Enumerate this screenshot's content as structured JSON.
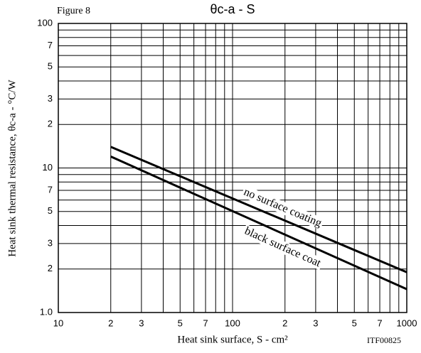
{
  "chart_data": {
    "type": "line",
    "figure_label": "Figure 8",
    "title": "θc-a - S",
    "xlabel": "Heat sink surface, S - cm²",
    "ylabel": "Heat sink thermal resistance, θc-a - °C/W",
    "code": "ITF00825",
    "xscale": "log",
    "yscale": "log",
    "grid": true,
    "xlim": [
      10,
      1000
    ],
    "ylim": [
      1,
      100
    ],
    "xticks": [
      10,
      {
        "value": 20,
        "label": "2"
      },
      {
        "value": 30,
        "label": "3"
      },
      {
        "value": 50,
        "label": "5"
      },
      {
        "value": 70,
        "label": "7"
      },
      100,
      {
        "value": 200,
        "label": "2"
      },
      {
        "value": 300,
        "label": "3"
      },
      {
        "value": 500,
        "label": "5"
      },
      {
        "value": 700,
        "label": "7"
      },
      1000
    ],
    "yticks": [
      {
        "value": 1,
        "label": "1.0"
      },
      2,
      3,
      5,
      7,
      10,
      {
        "value": 20,
        "label": "2"
      },
      {
        "value": 30,
        "label": "3"
      },
      {
        "value": 50,
        "label": "5"
      },
      {
        "value": 70,
        "label": "7"
      },
      100
    ],
    "x_minor_grid": [
      40,
      60,
      80,
      90,
      400,
      600,
      800,
      900
    ],
    "y_minor_grid": [
      4,
      6,
      8,
      9,
      40,
      60,
      80,
      90
    ],
    "series": [
      {
        "name": "no surface coating",
        "color": "#000000",
        "x": [
          20,
          1000
        ],
        "values": [
          14,
          1.9
        ]
      },
      {
        "name": "black surface coat",
        "color": "#000000",
        "x": [
          20,
          1000
        ],
        "values": [
          12,
          1.45
        ]
      }
    ]
  }
}
